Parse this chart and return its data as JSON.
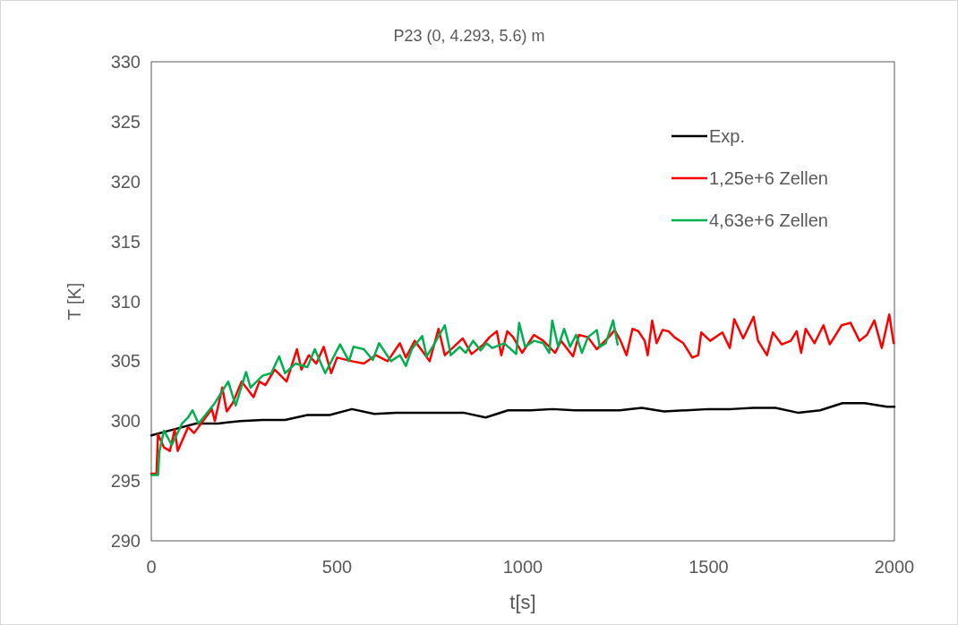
{
  "chart_data": {
    "type": "line",
    "title": "P23 (0, 4.293, 5.6) m",
    "xlabel": "t[s]",
    "ylabel": "T [K]",
    "xlim": [
      0,
      2000
    ],
    "xticks": [
      0,
      500,
      1000,
      1500,
      2000
    ],
    "ylim": [
      290,
      330
    ],
    "yticks": [
      290,
      295,
      300,
      305,
      310,
      315,
      320,
      325,
      330
    ],
    "grid": false,
    "legend": "top right",
    "marker": "none",
    "line_style": "solid",
    "series": [
      {
        "name": "Exp.",
        "color": "#000000",
        "x": [
          0,
          60,
          120,
          180,
          240,
          300,
          360,
          420,
          480,
          540,
          600,
          660,
          720,
          780,
          840,
          900,
          960,
          1020,
          1080,
          1140,
          1200,
          1260,
          1320,
          1380,
          1440,
          1500,
          1560,
          1620,
          1680,
          1740,
          1800,
          1860,
          1920,
          1980,
          2000
        ],
        "values": [
          298.8,
          299.3,
          299.8,
          299.8,
          300.0,
          300.1,
          300.1,
          300.5,
          300.5,
          301.0,
          300.6,
          300.7,
          300.7,
          300.7,
          300.7,
          300.3,
          300.9,
          300.9,
          301.0,
          300.9,
          300.9,
          300.9,
          301.1,
          300.8,
          300.9,
          301.0,
          301.0,
          301.1,
          301.1,
          300.7,
          300.9,
          301.5,
          301.5,
          301.2,
          301.2
        ]
      },
      {
        "name": "1,25e+6 Zellen",
        "color": "#ff0000",
        "x": [
          0,
          14,
          18,
          34,
          50,
          63,
          71,
          99,
          115,
          139,
          163,
          171,
          191,
          203,
          219,
          243,
          275,
          291,
          307,
          332,
          364,
          392,
          404,
          424,
          444,
          464,
          484,
          500,
          540,
          572,
          604,
          636,
          669,
          685,
          709,
          733,
          749,
          773,
          790,
          814,
          838,
          862,
          894,
          910,
          930,
          942,
          958,
          974,
          998,
          1030,
          1055,
          1087,
          1103,
          1135,
          1151,
          1175,
          1199,
          1231,
          1247,
          1263,
          1279,
          1295,
          1311,
          1328,
          1336,
          1348,
          1360,
          1376,
          1392,
          1408,
          1432,
          1456,
          1472,
          1480,
          1504,
          1537,
          1557,
          1569,
          1593,
          1621,
          1633,
          1657,
          1673,
          1697,
          1721,
          1737,
          1749,
          1761,
          1785,
          1809,
          1826,
          1858,
          1882,
          1906,
          1926,
          1946,
          1966,
          1986,
          1998
        ],
        "values": [
          295.6,
          295.6,
          298.9,
          297.8,
          297.5,
          299.3,
          297.5,
          299.5,
          299.0,
          300.0,
          301.0,
          300.0,
          302.8,
          300.8,
          301.5,
          303.3,
          302.0,
          303.3,
          303.0,
          304.3,
          303.3,
          306.0,
          304.3,
          305.5,
          304.8,
          306.2,
          304.0,
          305.3,
          305.0,
          304.8,
          305.5,
          305.0,
          306.5,
          305.3,
          306.7,
          305.7,
          305.0,
          307.7,
          305.5,
          306.2,
          306.9,
          305.6,
          306.4,
          307.0,
          307.5,
          305.5,
          307.5,
          307.0,
          305.7,
          307.2,
          306.7,
          305.7,
          306.7,
          305.4,
          307.2,
          307.0,
          306.0,
          307.0,
          307.6,
          306.7,
          305.5,
          307.7,
          307.5,
          306.7,
          305.5,
          308.4,
          306.5,
          307.6,
          307.5,
          307.0,
          306.5,
          305.3,
          305.5,
          307.4,
          306.7,
          307.4,
          306.1,
          308.5,
          306.9,
          308.7,
          306.7,
          305.5,
          307.4,
          306.4,
          306.7,
          307.5,
          305.7,
          307.7,
          306.5,
          308.0,
          306.4,
          308.0,
          308.2,
          306.7,
          307.2,
          308.4,
          306.1,
          308.9,
          306.5
        ]
      },
      {
        "name": "4,63e+6 Zellen",
        "color": "#00b050",
        "x": [
          0,
          18,
          22,
          34,
          55,
          83,
          99,
          111,
          127,
          171,
          207,
          227,
          255,
          267,
          300,
          323,
          344,
          360,
          388,
          420,
          440,
          468,
          508,
          532,
          544,
          572,
          596,
          613,
          645,
          669,
          685,
          701,
          729,
          741,
          757,
          790,
          806,
          830,
          846,
          866,
          886,
          902,
          918,
          950,
          982,
          990,
          1006,
          1030,
          1055,
          1071,
          1079,
          1095,
          1111,
          1127,
          1143,
          1159,
          1175,
          1199,
          1207,
          1223,
          1243,
          1255
        ],
        "values": [
          295.5,
          295.5,
          297.5,
          299.2,
          298.0,
          299.8,
          300.3,
          300.9,
          299.8,
          301.5,
          303.3,
          301.3,
          304.1,
          302.8,
          303.8,
          304.0,
          305.4,
          304.0,
          304.8,
          304.5,
          306.0,
          304.0,
          306.4,
          305.0,
          306.2,
          306.0,
          305.1,
          306.5,
          305.0,
          305.5,
          304.6,
          306.0,
          307.1,
          305.4,
          306.2,
          308.0,
          305.5,
          306.2,
          305.7,
          306.7,
          305.9,
          306.5,
          306.1,
          306.5,
          305.6,
          308.2,
          306.2,
          306.7,
          306.5,
          305.7,
          308.4,
          306.2,
          307.7,
          306.2,
          307.2,
          305.7,
          307.0,
          307.6,
          306.2,
          306.5,
          308.4,
          306.4
        ]
      }
    ]
  }
}
